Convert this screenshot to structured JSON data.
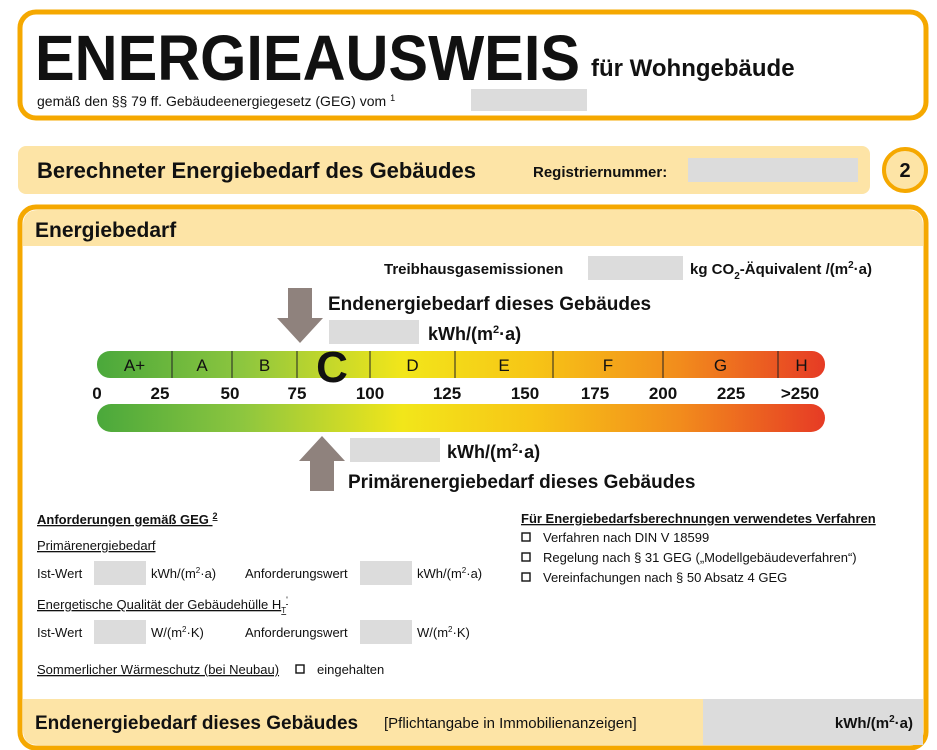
{
  "header": {
    "title": "ENERGIEAUSWEIS",
    "subtitle": "für Wohngebäude",
    "legal_text": "gemäß den §§ 79 ff. Gebäudeenergiegesetz (GEG) vom",
    "legal_footnote": "1"
  },
  "section": {
    "title": "Berechneter Energiebedarf des Gebäudes",
    "registration_label": "Registriernummer:",
    "page_number": "2"
  },
  "energy": {
    "title": "Energiebedarf",
    "emissions": {
      "label": "Treibhausgasemissionen",
      "unit": [
        "kg CO",
        "2",
        "-Äquivalent /(m",
        "2",
        "·a)"
      ]
    },
    "final_energy": {
      "label": "Endenergiebedarf dieses Gebäudes",
      "unit": [
        "kWh/(m",
        "2",
        "·a)"
      ]
    },
    "primary_energy": {
      "label": "Primärenergiebedarf dieses Gebäudes",
      "unit": [
        "kWh/(m",
        "2",
        "·a)"
      ]
    },
    "classes": [
      "A+",
      "A",
      "B",
      "C",
      "D",
      "E",
      "F",
      "G",
      "H"
    ],
    "scale": [
      "0",
      "25",
      "50",
      "75",
      "100",
      "125",
      "150",
      "175",
      "200",
      "225",
      ">250"
    ]
  },
  "requirements": {
    "title": "Anforderungen gemäß GEG",
    "footnote": "2",
    "primary": {
      "title": "Primärenergiebedarf",
      "actual_label": "Ist-Wert",
      "actual_unit": [
        "kWh/(m",
        "2",
        "·a)"
      ],
      "required_label": "Anforderungswert",
      "required_unit": [
        "kWh/(m",
        "2",
        "·a)"
      ]
    },
    "envelope": {
      "title": "Energetische Qualität der Gebäudehülle H",
      "title_sub": "T",
      "title_prime": "'",
      "actual_label": "Ist-Wert",
      "actual_unit": [
        "W/(m",
        "2",
        "·K)"
      ],
      "required_label": "Anforderungswert",
      "required_unit": [
        "W/(m",
        "2",
        "·K)"
      ]
    },
    "summer": {
      "label": "Sommerlicher Wärmeschutz (bei Neubau)",
      "option": "eingehalten"
    }
  },
  "methods": {
    "title": "Für Energiebedarfsberechnungen verwendetes Verfahren",
    "options": [
      "Verfahren nach DIN V 18599",
      "Regelung nach § 31 GEG („Modellgebäudeverfahren“)",
      "Vereinfachungen nach § 50 Absatz 4 GEG"
    ]
  },
  "footer": {
    "title": "Endenergiebedarf dieses Gebäudes",
    "note": "[Pflichtangabe in Immobilienanzeigen]",
    "unit": [
      "kWh/(m",
      "2",
      "·a)"
    ]
  }
}
